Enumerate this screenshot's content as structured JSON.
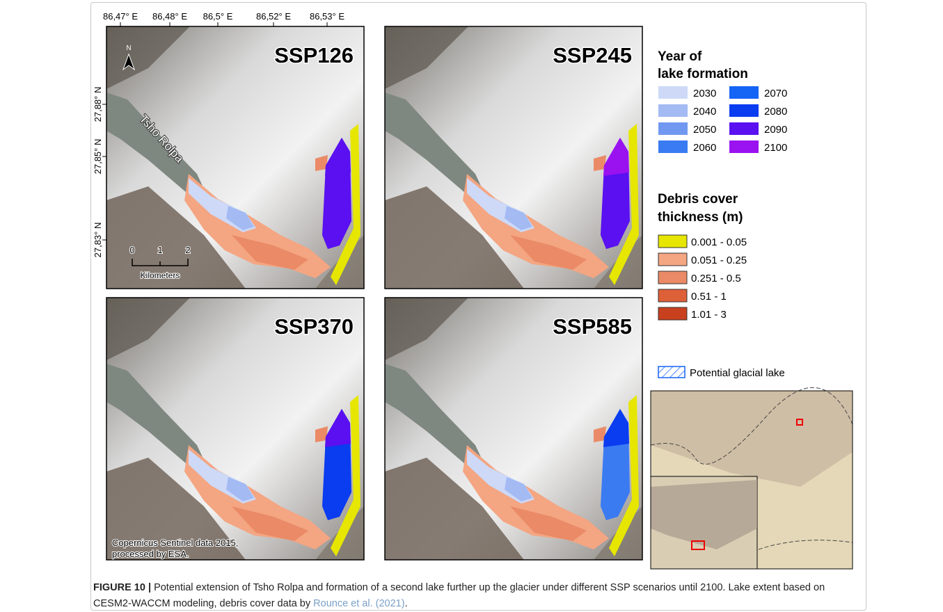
{
  "figure": {
    "x_labels": [
      "86,47° E",
      "86,48° E",
      "86,5° E",
      "86,52° E",
      "86,53° E"
    ],
    "y_labels": [
      "27,88° N",
      "27,85° N",
      "27,83° N"
    ],
    "panels": [
      {
        "title": "SSP126"
      },
      {
        "title": "SSP245"
      },
      {
        "title": "SSP370"
      },
      {
        "title": "SSP585"
      }
    ],
    "north": "N",
    "lake_label": "Tsho Rolpa",
    "scale": {
      "ticks": [
        "0",
        "1",
        "2"
      ],
      "unit": "Kilometers"
    },
    "credit": [
      "Copernicus Sentinel data 2015,",
      "processed by ESA."
    ],
    "legend_year": {
      "title": [
        "Year of",
        "lake formation"
      ],
      "items": [
        {
          "label": "2030",
          "color": "#cdd9f7"
        },
        {
          "label": "2040",
          "color": "#a3baf3"
        },
        {
          "label": "2050",
          "color": "#7198f0"
        },
        {
          "label": "2060",
          "color": "#3a7bf2"
        },
        {
          "label": "2070",
          "color": "#1464f5"
        },
        {
          "label": "2080",
          "color": "#0a3cf0"
        },
        {
          "label": "2090",
          "color": "#5a10f0"
        },
        {
          "label": "2100",
          "color": "#9a12f0"
        }
      ]
    },
    "legend_debris": {
      "title": [
        "Debris cover",
        "thickness (m)"
      ],
      "items": [
        {
          "label": "0.001 - 0.05",
          "color": "#e6e600"
        },
        {
          "label": "0.051 - 0.25",
          "color": "#f4a582"
        },
        {
          "label": "0.251 - 0.5",
          "color": "#ea8a66"
        },
        {
          "label": "0.51 - 1",
          "color": "#de6038"
        },
        {
          "label": "1.01 - 3",
          "color": "#c8401e"
        }
      ]
    },
    "potential_lake": "Potential glacial lake",
    "caption": {
      "label": "FIGURE 10 |",
      "text": "Potential extension of Tsho Rolpa and formation of a second lake further up the glacier under different SSP scenarios until 2100. Lake extent based on CESM2-WACCM modeling, debris cover data by",
      "link": "Rounce et al. (2021)",
      "end": "."
    }
  }
}
